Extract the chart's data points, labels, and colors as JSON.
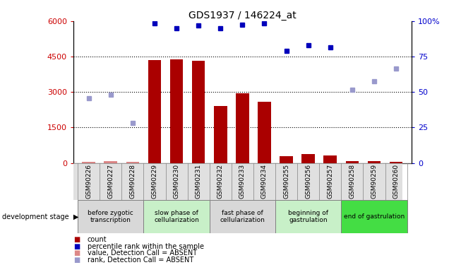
{
  "title": "GDS1937 / 146224_at",
  "samples": [
    "GSM90226",
    "GSM90227",
    "GSM90228",
    "GSM90229",
    "GSM90230",
    "GSM90231",
    "GSM90232",
    "GSM90233",
    "GSM90234",
    "GSM90255",
    "GSM90256",
    "GSM90257",
    "GSM90258",
    "GSM90259",
    "GSM90260"
  ],
  "bar_values": [
    50,
    80,
    60,
    4350,
    4380,
    4320,
    2400,
    2950,
    2600,
    280,
    380,
    330,
    90,
    70,
    60
  ],
  "bar_absent": [
    true,
    true,
    true,
    false,
    false,
    false,
    false,
    false,
    false,
    false,
    false,
    false,
    false,
    false,
    false
  ],
  "rank_values_raw": [
    null,
    null,
    null,
    5900,
    5700,
    5820,
    5700,
    5850,
    5900,
    4750,
    4980,
    4880,
    null,
    null,
    null
  ],
  "rank_absent_values_raw": [
    2750,
    2900,
    1700,
    null,
    null,
    null,
    null,
    null,
    null,
    null,
    null,
    null,
    3100,
    3450,
    4000
  ],
  "ylim_left": [
    0,
    6000
  ],
  "ylim_right": [
    0,
    100
  ],
  "yticks_left": [
    0,
    1500,
    3000,
    4500,
    6000
  ],
  "yticks_right": [
    0,
    25,
    50,
    75,
    100
  ],
  "bar_color_normal": "#aa0000",
  "bar_color_absent": "#dd8888",
  "rank_color_normal": "#0000bb",
  "rank_color_absent": "#9999cc",
  "stages": [
    {
      "label": "before zygotic\ntranscription",
      "start": 0,
      "end": 3,
      "color": "#d8d8d8"
    },
    {
      "label": "slow phase of\ncellularization",
      "start": 3,
      "end": 6,
      "color": "#c8f0c8"
    },
    {
      "label": "fast phase of\ncellularization",
      "start": 6,
      "end": 9,
      "color": "#d8d8d8"
    },
    {
      "label": "beginning of\ngastrulation",
      "start": 9,
      "end": 12,
      "color": "#c8f0c8"
    },
    {
      "label": "end of gastrulation",
      "start": 12,
      "end": 15,
      "color": "#44dd44"
    }
  ],
  "legend_items": [
    {
      "label": "count",
      "color": "#aa0000"
    },
    {
      "label": "percentile rank within the sample",
      "color": "#0000bb"
    },
    {
      "label": "value, Detection Call = ABSENT",
      "color": "#dd8888"
    },
    {
      "label": "rank, Detection Call = ABSENT",
      "color": "#9999cc"
    }
  ]
}
